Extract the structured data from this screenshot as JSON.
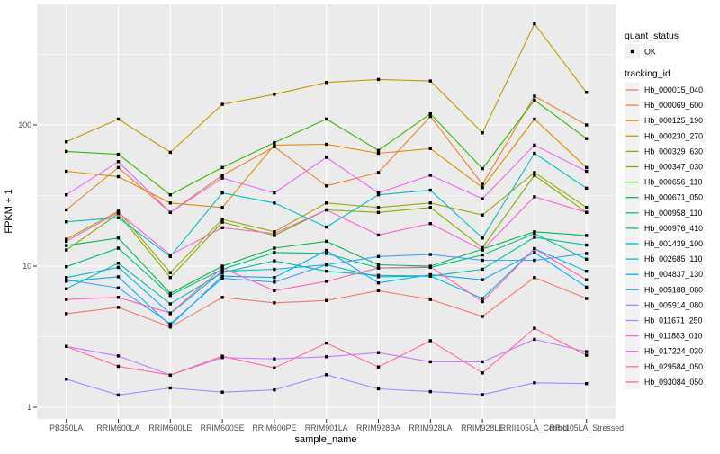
{
  "figure": {
    "bg": "#FFFFFF",
    "panel_bg": "#EBEBEB",
    "grid_color": "#FFFFFF",
    "axis_text_color": "#4D4D4D",
    "tick_mark_color": "#333333",
    "point_color": "#000000",
    "legend_key_bg": "#F2F2F2"
  },
  "chart_data": {
    "type": "line",
    "title": "",
    "xlabel": "sample_name",
    "ylabel": "FPKM + 1",
    "y_scale": "log10",
    "y_ticks": [
      1,
      10,
      100
    ],
    "ylim": [
      0.85,
      700
    ],
    "grid": true,
    "legend_position": "right",
    "marker": "black-point",
    "categories": [
      "PB350LA",
      "RRIM600LA",
      "RRIM600LE",
      "RRIM600SE",
      "RRIM600PE",
      "RRIM901LA",
      "RRIM928BA",
      "RRIM928LA",
      "RRIM928LE",
      "RRII105LA_Control",
      "RRII105LA_Stressed"
    ],
    "series": [
      {
        "name": "Hb_000015_040",
        "color": "#F8766D",
        "values": [
          4.6,
          5.1,
          3.7,
          6.0,
          5.5,
          5.7,
          6.7,
          5.8,
          4.4,
          8.3,
          5.9
        ]
      },
      {
        "name": "Hb_000069_600",
        "color": "#EA8331",
        "values": [
          25,
          50,
          24,
          44,
          70,
          37,
          46,
          115,
          38,
          160,
          100
        ]
      },
      {
        "name": "Hb_000125_190",
        "color": "#D89000",
        "values": [
          47,
          43,
          28,
          26,
          72,
          73,
          63,
          68,
          36,
          110,
          50
        ]
      },
      {
        "name": "Hb_000230_270",
        "color": "#C09B00",
        "values": [
          76,
          110,
          64,
          140,
          165,
          200,
          210,
          205,
          88,
          520,
          170
        ]
      },
      {
        "name": "Hb_000329_630",
        "color": "#A3A500",
        "values": [
          15.5,
          24.5,
          9.0,
          21.5,
          17.5,
          28,
          26,
          28,
          23,
          46,
          26
        ]
      },
      {
        "name": "Hb_000347_030",
        "color": "#7CAE00",
        "values": [
          13,
          23.5,
          8.3,
          20.5,
          16.5,
          25,
          24,
          26,
          13.5,
          44,
          24
        ]
      },
      {
        "name": "Hb_000656_110",
        "color": "#39B600",
        "values": [
          65,
          62,
          32,
          50,
          75,
          110,
          66,
          120,
          49,
          150,
          80
        ]
      },
      {
        "name": "Hb_000671_050",
        "color": "#00BB4E",
        "values": [
          14,
          15.8,
          6.4,
          10,
          13.4,
          15,
          10.2,
          10,
          13.2,
          17.5,
          16.5
        ]
      },
      {
        "name": "Hb_000958_110",
        "color": "#00BF7D",
        "values": [
          9.9,
          13.4,
          6.2,
          9.5,
          12.5,
          12.3,
          9.7,
          9.8,
          12,
          17,
          11.2
        ]
      },
      {
        "name": "Hb_000976_410",
        "color": "#00C1A3",
        "values": [
          6.9,
          10.5,
          5.4,
          9.0,
          10.9,
          9.2,
          8.6,
          8.5,
          9.5,
          16,
          14.1
        ]
      },
      {
        "name": "Hb_001439_100",
        "color": "#00BFC4",
        "values": [
          20.6,
          22,
          11.7,
          33,
          28,
          18.9,
          32,
          34.5,
          15.8,
          63,
          35.6
        ]
      },
      {
        "name": "Hb_002685_110",
        "color": "#00BAE0",
        "values": [
          8.3,
          9.8,
          4.6,
          9.2,
          9.5,
          10.2,
          8.4,
          8.5,
          5.9,
          13.3,
          9.2
        ]
      },
      {
        "name": "Hb_004837_130",
        "color": "#00B0F6",
        "values": [
          7.8,
          8.4,
          3.8,
          8.5,
          8.3,
          12.9,
          7.6,
          8.7,
          8.0,
          12.5,
          7.1
        ]
      },
      {
        "name": "Hb_005188_080",
        "color": "#35A2FF",
        "values": [
          8.0,
          7.0,
          3.9,
          8.2,
          7.7,
          10.2,
          11.7,
          12.1,
          11.0,
          11.0,
          12.3
        ]
      },
      {
        "name": "Hb_005914_080",
        "color": "#9590FF",
        "values": [
          1.58,
          1.22,
          1.37,
          1.28,
          1.33,
          1.7,
          1.35,
          1.29,
          1.23,
          1.49,
          1.47
        ]
      },
      {
        "name": "Hb_011671_250",
        "color": "#C77CFF",
        "values": [
          2.7,
          2.31,
          1.69,
          2.25,
          2.2,
          2.28,
          2.44,
          2.1,
          2.1,
          3.03,
          2.48
        ]
      },
      {
        "name": "Hb_011883_010",
        "color": "#E76BF3",
        "values": [
          32,
          55,
          24,
          42,
          33,
          59,
          33,
          44,
          30,
          72,
          47
        ]
      },
      {
        "name": "Hb_017224_030",
        "color": "#FA62DB",
        "values": [
          15,
          24,
          12,
          18.7,
          17,
          25,
          16.6,
          20,
          13,
          31,
          24
        ]
      },
      {
        "name": "Hb_029584_050",
        "color": "#FF62BC",
        "values": [
          5.8,
          6.0,
          4.65,
          9.7,
          6.7,
          7.8,
          9.7,
          9.9,
          5.6,
          13.3,
          8.0
        ]
      },
      {
        "name": "Hb_093084_050",
        "color": "#FF6A98",
        "values": [
          2.7,
          1.95,
          1.69,
          2.3,
          1.9,
          2.85,
          1.93,
          2.96,
          1.75,
          3.63,
          2.34
        ]
      }
    ],
    "legends": [
      {
        "title": "quant_status",
        "entries": [
          {
            "label": "OK",
            "marker": "point"
          }
        ]
      },
      {
        "title": "tracking_id"
      }
    ]
  }
}
